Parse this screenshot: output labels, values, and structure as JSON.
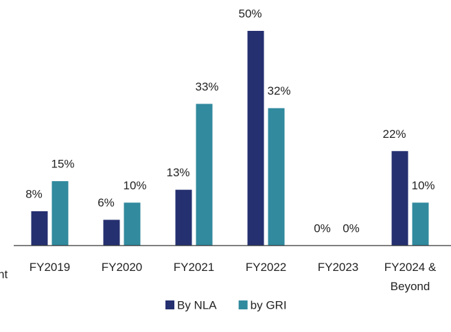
{
  "chart_data": {
    "type": "bar",
    "categories": [
      "FY2019",
      "FY2020",
      "FY2021",
      "FY2022",
      "FY2023",
      "FY2024 & Beyond"
    ],
    "series": [
      {
        "name": "By NLA",
        "color": "#253070",
        "values": [
          8,
          6,
          13,
          50,
          0,
          22
        ],
        "value_labels": [
          "8%",
          "6%",
          "13%",
          "50%",
          "0%",
          "22%"
        ]
      },
      {
        "name": "by GRI",
        "color": "#318a9e",
        "values": [
          15,
          10,
          33,
          32,
          0,
          10
        ],
        "value_labels": [
          "15%",
          "10%",
          "33%",
          "32%",
          "0%",
          "10%"
        ]
      }
    ],
    "ylim": [
      0,
      50
    ],
    "annotations": [
      "nt"
    ],
    "legend": "bottom"
  }
}
